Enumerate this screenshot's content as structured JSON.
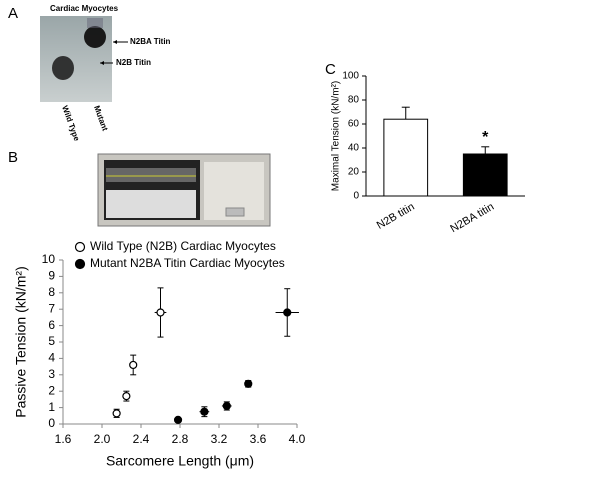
{
  "panel_labels": [
    "A",
    "B",
    "C"
  ],
  "gel": {
    "title": "Cardiac Myocytes",
    "bands": [
      "N2BA Titin",
      "N2B Titin"
    ],
    "lanes": [
      "Wild Type",
      "Mutant"
    ]
  },
  "chart_data": [
    {
      "type": "scatter",
      "xlabel": "Sarcomere Length (μm)",
      "ylabel": "Passive Tension (kN/m²)",
      "xlim": [
        1.6,
        4.0
      ],
      "xticks": [
        1.6,
        {
          "value": 2.0,
          "label": "2.0"
        },
        2.4,
        2.8,
        3.2,
        3.6,
        {
          "value": 4.0,
          "label": "4.0"
        }
      ],
      "ylim": [
        0,
        10
      ],
      "yticks": [
        0,
        1,
        2,
        3,
        4,
        5,
        6,
        7,
        8,
        9,
        10
      ],
      "series": [
        {
          "name": "Wild Type (N2B) Cardiac Myocytes",
          "color": "#000000",
          "filled": false,
          "x": [
            2.15,
            2.25,
            2.32,
            2.6
          ],
          "values": [
            0.65,
            1.7,
            3.6,
            6.8
          ],
          "x_err": [
            0.02,
            0.02,
            0.02,
            0.06
          ],
          "y_err": [
            0.25,
            0.3,
            0.6,
            1.5
          ]
        },
        {
          "name": "Mutant N2BA Titin Cardiac Myocytes",
          "color": "#000000",
          "filled": true,
          "x": [
            2.78,
            3.05,
            3.28,
            3.5,
            3.9
          ],
          "values": [
            0.25,
            0.75,
            1.1,
            2.45,
            6.8
          ],
          "x_err": [
            0.02,
            0.05,
            0.05,
            0.03,
            0.12
          ],
          "y_err": [
            0.1,
            0.3,
            0.25,
            0.2,
            1.45
          ]
        }
      ]
    },
    {
      "type": "bar",
      "ylabel": "Maximal Tension (kN/m²)",
      "categories": [
        "N2B titin",
        "N2BA titin"
      ],
      "values": [
        64,
        35
      ],
      "errors": [
        10,
        6
      ],
      "colors": [
        "#ffffff",
        "#000000"
      ],
      "ylim": [
        0,
        100
      ],
      "yticks": [
        0,
        20,
        40,
        60,
        80,
        100
      ],
      "annotation": "*"
    }
  ]
}
